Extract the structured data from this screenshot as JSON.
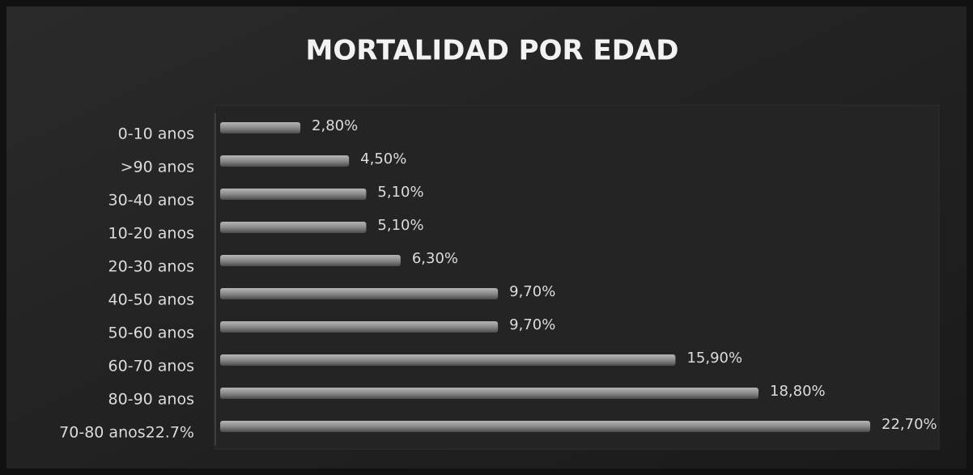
{
  "chart_data": {
    "type": "bar",
    "orientation": "horizontal",
    "title": "MORTALIDAD POR EDAD",
    "categories": [
      "0-10 anos",
      ">90 anos",
      "30-40 anos",
      "10-20 anos",
      "20-30 anos",
      "40-50 anos",
      "50-60 anos",
      "60-70 anos",
      "80-90 anos",
      "70-80 anos22.7%"
    ],
    "values": [
      2.8,
      4.5,
      5.1,
      5.1,
      6.3,
      9.7,
      9.7,
      15.9,
      18.8,
      22.7
    ],
    "value_labels": [
      "2,80%",
      "4,50%",
      "5,10%",
      "5,10%",
      "6,30%",
      "9,70%",
      "9,70%",
      "15,90%",
      "18,80%",
      "22,70%"
    ],
    "color": "#8a8a8a"
  }
}
